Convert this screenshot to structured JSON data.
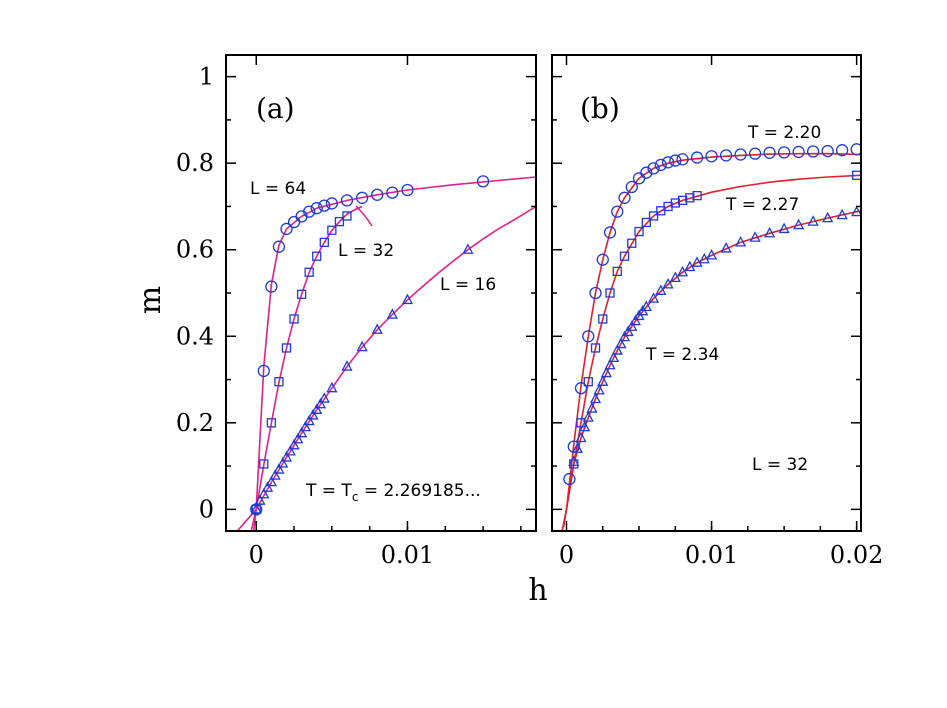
{
  "chart_data": [
    {
      "panel_label": "(a)",
      "type": "scatter",
      "xlabel": "h",
      "ylabel": "m",
      "xlim": [
        -0.002,
        0.0185
      ],
      "ylim": [
        -0.05,
        1.05
      ],
      "xticks": [
        0,
        0.01
      ],
      "xtick_labels": [
        "0",
        "0.01"
      ],
      "yticks": [
        0,
        0.2,
        0.4,
        0.6,
        0.8,
        1
      ],
      "ytick_labels": [
        "0",
        "0.2",
        "0.4",
        "0.6",
        "0.8",
        "1"
      ],
      "fit_color": "#e0208c",
      "marker_color": "#1f3bd6",
      "annotation_T": {
        "main": "T = T",
        "sub": "c",
        "rest": " = 2.269185..."
      },
      "series": [
        {
          "name": "L = 64",
          "marker": "circle",
          "x": [
            0,
            0.0005,
            0.001,
            0.0015,
            0.002,
            0.0025,
            0.003,
            0.0035,
            0.004,
            0.0045,
            0.005,
            0.006,
            0.007,
            0.008,
            0.009,
            0.01,
            0.015
          ],
          "y": [
            0.0,
            0.32,
            0.515,
            0.607,
            0.648,
            0.664,
            0.677,
            0.688,
            0.696,
            0.702,
            0.707,
            0.714,
            0.72,
            0.727,
            0.732,
            0.738,
            0.758
          ],
          "fit_x": [
            -0.0002,
            0,
            0.0005,
            0.001,
            0.0015,
            0.002,
            0.003,
            0.004,
            0.006,
            0.008,
            0.01,
            0.013,
            0.016,
            0.0185
          ],
          "fit_y": [
            -0.06,
            0.0,
            0.33,
            0.52,
            0.61,
            0.648,
            0.677,
            0.696,
            0.714,
            0.727,
            0.738,
            0.75,
            0.76,
            0.768
          ]
        },
        {
          "name": "L = 32",
          "marker": "square",
          "x": [
            0,
            0.0005,
            0.001,
            0.0015,
            0.002,
            0.0025,
            0.003,
            0.0035,
            0.004,
            0.0045,
            0.005,
            0.0055,
            0.006
          ],
          "y": [
            0.0,
            0.105,
            0.2,
            0.295,
            0.373,
            0.44,
            0.497,
            0.548,
            0.585,
            0.617,
            0.645,
            0.665,
            0.678
          ],
          "fit_x": [
            -0.0004,
            0,
            0.0005,
            0.001,
            0.0015,
            0.002,
            0.0025,
            0.003,
            0.0035,
            0.004,
            0.0045,
            0.005,
            0.0055,
            0.006,
            0.0065,
            0.007
          ],
          "fit_y": [
            -0.06,
            0.0,
            0.103,
            0.2,
            0.293,
            0.373,
            0.44,
            0.497,
            0.548,
            0.585,
            0.617,
            0.645,
            0.665,
            0.682,
            0.692,
            0.7
          ]
        },
        {
          "name": "L = 16",
          "marker": "triangle",
          "x": [
            0,
            0.00025,
            0.0005,
            0.00075,
            0.001,
            0.00125,
            0.0015,
            0.00175,
            0.002,
            0.00225,
            0.0025,
            0.00275,
            0.003,
            0.00325,
            0.0035,
            0.00375,
            0.004,
            0.00425,
            0.0045,
            0.005,
            0.006,
            0.007,
            0.008,
            0.009,
            0.01,
            0.014
          ],
          "y": [
            0.0,
            0.02,
            0.035,
            0.05,
            0.063,
            0.078,
            0.092,
            0.106,
            0.12,
            0.134,
            0.148,
            0.162,
            0.176,
            0.19,
            0.204,
            0.217,
            0.23,
            0.243,
            0.256,
            0.28,
            0.33,
            0.375,
            0.415,
            0.45,
            0.484,
            0.6
          ],
          "fit_x": [
            -0.002,
            -0.001,
            0,
            0.001,
            0.002,
            0.003,
            0.004,
            0.005,
            0.006,
            0.007,
            0.008,
            0.009,
            0.01,
            0.011,
            0.012,
            0.013,
            0.014,
            0.015,
            0.016,
            0.017,
            0.0185
          ],
          "fit_y": [
            -0.08,
            -0.04,
            0.0,
            0.063,
            0.12,
            0.176,
            0.23,
            0.28,
            0.33,
            0.375,
            0.415,
            0.45,
            0.484,
            0.515,
            0.545,
            0.573,
            0.6,
            0.625,
            0.648,
            0.668,
            0.7
          ]
        }
      ],
      "labels": [
        "L = 64",
        "L = 32",
        "L = 16"
      ]
    },
    {
      "panel_label": "(b)",
      "type": "scatter",
      "xlabel": "h",
      "ylabel": "m",
      "xlim": [
        -0.001,
        0.0203
      ],
      "ylim": [
        -0.05,
        1.05
      ],
      "xticks": [
        0,
        0.01,
        0.02
      ],
      "xtick_labels": [
        "0",
        "0.01",
        "0.02"
      ],
      "fit_color": "#e0202c",
      "marker_color": "#1f3bd6",
      "annotation_L": "L = 32",
      "series": [
        {
          "name": "T = 2.20",
          "marker": "circle",
          "x": [
            0.0002,
            0.0005,
            0.001,
            0.0015,
            0.002,
            0.0025,
            0.003,
            0.0035,
            0.004,
            0.0045,
            0.005,
            0.0055,
            0.006,
            0.0065,
            0.007,
            0.0075,
            0.008,
            0.009,
            0.01,
            0.011,
            0.012,
            0.013,
            0.014,
            0.015,
            0.016,
            0.017,
            0.018,
            0.019,
            0.02
          ],
          "y": [
            0.07,
            0.145,
            0.28,
            0.4,
            0.5,
            0.577,
            0.64,
            0.688,
            0.72,
            0.745,
            0.765,
            0.778,
            0.788,
            0.796,
            0.802,
            0.806,
            0.809,
            0.813,
            0.816,
            0.818,
            0.82,
            0.822,
            0.824,
            0.825,
            0.826,
            0.827,
            0.828,
            0.83,
            0.832
          ],
          "fit_x": [
            -0.0002,
            0,
            0.0005,
            0.001,
            0.0015,
            0.002,
            0.0025,
            0.003,
            0.0035,
            0.004,
            0.005,
            0.006,
            0.007,
            0.008,
            0.01,
            0.012,
            0.014,
            0.016,
            0.018,
            0.0203
          ],
          "fit_y": [
            -0.04,
            0.0,
            0.15,
            0.285,
            0.4,
            0.5,
            0.577,
            0.64,
            0.688,
            0.72,
            0.765,
            0.788,
            0.8,
            0.807,
            0.814,
            0.818,
            0.821,
            0.822,
            0.822,
            0.82
          ]
        },
        {
          "name": "T = 2.27",
          "marker": "square",
          "x": [
            0.0005,
            0.001,
            0.0015,
            0.002,
            0.0025,
            0.003,
            0.0035,
            0.004,
            0.0045,
            0.005,
            0.0055,
            0.006,
            0.0065,
            0.007,
            0.0075,
            0.008,
            0.0085,
            0.009,
            0.02
          ],
          "y": [
            0.105,
            0.2,
            0.295,
            0.373,
            0.44,
            0.5,
            0.55,
            0.585,
            0.615,
            0.642,
            0.663,
            0.678,
            0.69,
            0.7,
            0.708,
            0.714,
            0.72,
            0.725,
            0.772
          ],
          "fit_x": [
            -0.0003,
            0,
            0.0005,
            0.001,
            0.0015,
            0.002,
            0.0025,
            0.003,
            0.0035,
            0.004,
            0.005,
            0.006,
            0.007,
            0.008,
            0.01,
            0.012,
            0.014,
            0.016,
            0.018,
            0.0203
          ],
          "fit_y": [
            -0.05,
            0.0,
            0.105,
            0.2,
            0.295,
            0.373,
            0.44,
            0.5,
            0.55,
            0.585,
            0.642,
            0.678,
            0.7,
            0.714,
            0.733,
            0.746,
            0.756,
            0.763,
            0.768,
            0.772
          ]
        },
        {
          "name": "T = 2.34",
          "marker": "triangle",
          "x": [
            0.0005,
            0.00075,
            0.001,
            0.00125,
            0.0015,
            0.00175,
            0.002,
            0.00225,
            0.0025,
            0.00275,
            0.003,
            0.00325,
            0.0035,
            0.00375,
            0.004,
            0.00425,
            0.0045,
            0.00475,
            0.005,
            0.00525,
            0.0055,
            0.006,
            0.0065,
            0.007,
            0.0075,
            0.008,
            0.0085,
            0.009,
            0.0095,
            0.01,
            0.011,
            0.012,
            0.013,
            0.014,
            0.015,
            0.016,
            0.017,
            0.018,
            0.019,
            0.02
          ],
          "y": [
            0.11,
            0.14,
            0.165,
            0.19,
            0.212,
            0.233,
            0.255,
            0.275,
            0.295,
            0.315,
            0.333,
            0.35,
            0.367,
            0.382,
            0.398,
            0.41,
            0.422,
            0.435,
            0.447,
            0.458,
            0.468,
            0.487,
            0.505,
            0.52,
            0.535,
            0.548,
            0.56,
            0.57,
            0.578,
            0.587,
            0.603,
            0.617,
            0.628,
            0.638,
            0.648,
            0.657,
            0.665,
            0.673,
            0.68,
            0.687
          ],
          "fit_x": [
            -0.0003,
            0,
            0.0005,
            0.001,
            0.0015,
            0.002,
            0.0025,
            0.003,
            0.0035,
            0.004,
            0.005,
            0.006,
            0.007,
            0.008,
            0.009,
            0.01,
            0.012,
            0.014,
            0.016,
            0.018,
            0.0203
          ],
          "fit_y": [
            -0.05,
            0.0,
            0.105,
            0.165,
            0.212,
            0.255,
            0.295,
            0.333,
            0.367,
            0.398,
            0.447,
            0.487,
            0.52,
            0.548,
            0.57,
            0.587,
            0.617,
            0.638,
            0.657,
            0.673,
            0.69
          ]
        }
      ],
      "labels": [
        "T = 2.20",
        "T = 2.27",
        "T = 2.34"
      ]
    }
  ]
}
